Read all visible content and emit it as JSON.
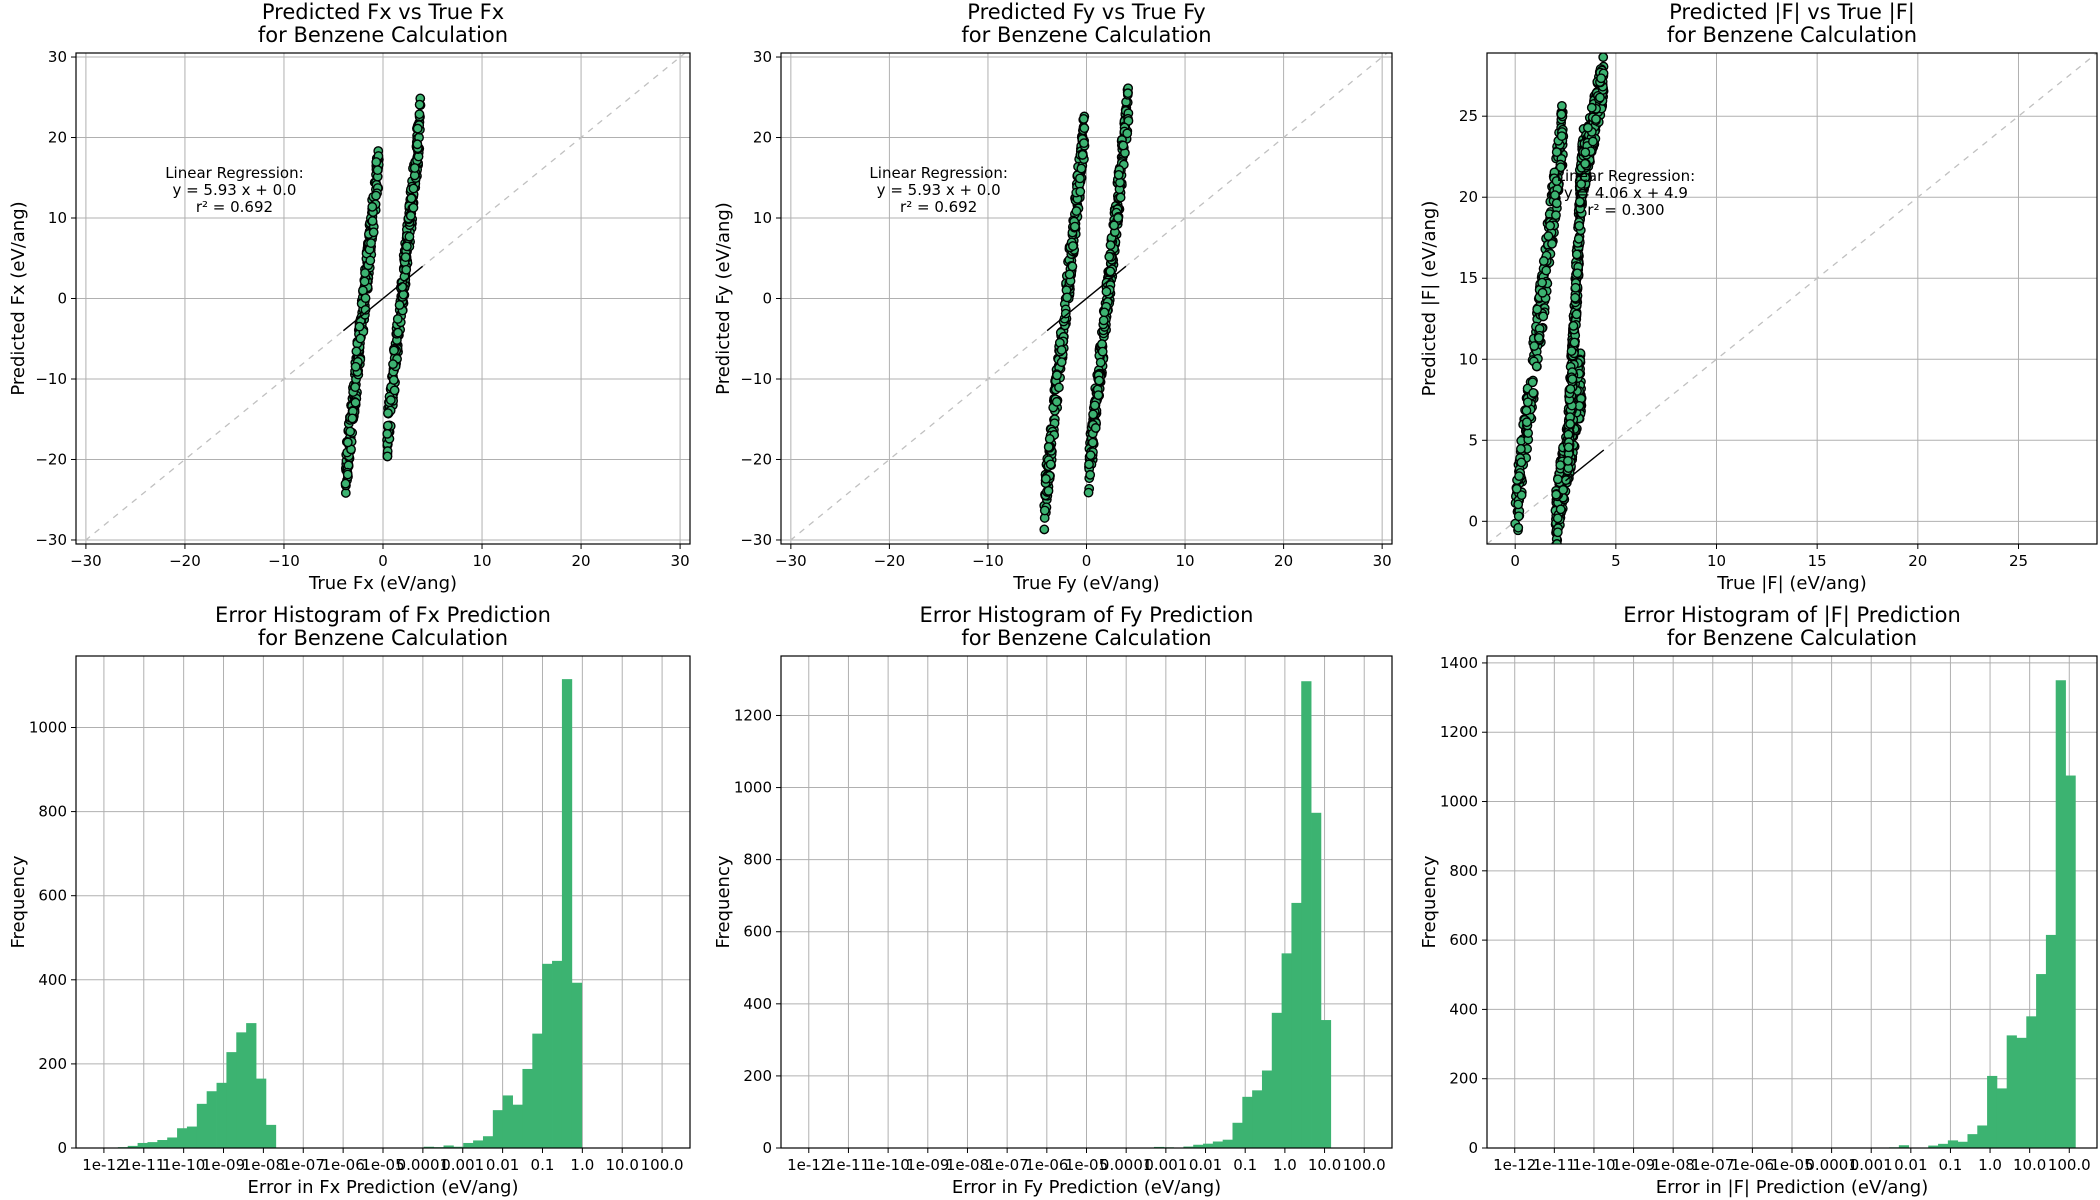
{
  "colors": {
    "marker_fill": "#3cb371",
    "marker_edge": "#000000",
    "bar_fill": "#3cb371",
    "grid": "#b0b0b0",
    "identity_line": "#c0c0c0",
    "regression_line": "#000000"
  },
  "chart_data": [
    {
      "type": "scatter",
      "title": "Predicted Fx vs True Fx\nfor Benzene Calculation",
      "xlabel": "True Fx (eV/ang)",
      "ylabel": "Predicted Fx (eV/ang)",
      "xlim": [
        -31,
        31
      ],
      "ylim": [
        -30.5,
        30.5
      ],
      "xticks": [
        -30,
        -20,
        -10,
        0,
        10,
        20,
        30
      ],
      "xticklabels": [
        "−30",
        "−20",
        "−10",
        "0",
        "10",
        "20",
        "30"
      ],
      "yticks": [
        -30,
        -20,
        -10,
        0,
        10,
        20,
        30
      ],
      "yticklabels": [
        "−30",
        "−20",
        "−10",
        "0",
        "10",
        "20",
        "30"
      ],
      "grid": true,
      "identity_line": true,
      "regression_line": {
        "x": [
          -4,
          4
        ],
        "y": [
          -4,
          4
        ]
      },
      "annotation": [
        "Linear Regression:",
        "y = 5.93 x + 0.0",
        "r² = 0.692"
      ],
      "annotation_anchor": {
        "x": -15,
        "y": 15
      },
      "point_bands": [
        {
          "x": [
            -3.8,
            -0.4
          ],
          "y_center": [
            -22.5,
            17.5
          ],
          "halfwidth": 3
        },
        {
          "x": [
            0.4,
            3.8
          ],
          "y_center": [
            -17.5,
            22.5
          ],
          "halfwidth": 3
        }
      ]
    },
    {
      "type": "scatter",
      "title": "Predicted Fy vs True Fy\nfor Benzene Calculation",
      "xlabel": "True Fy (eV/ang)",
      "ylabel": "Predicted Fy (eV/ang)",
      "xlim": [
        -31,
        31
      ],
      "ylim": [
        -30.5,
        30.5
      ],
      "xticks": [
        -30,
        -20,
        -10,
        0,
        10,
        20,
        30
      ],
      "xticklabels": [
        "−30",
        "−20",
        "−10",
        "0",
        "10",
        "20",
        "30"
      ],
      "yticks": [
        -30,
        -20,
        -10,
        0,
        10,
        20,
        30
      ],
      "yticklabels": [
        "−30",
        "−20",
        "−10",
        "0",
        "10",
        "20",
        "30"
      ],
      "grid": true,
      "identity_line": true,
      "regression_line": {
        "x": [
          -4,
          4
        ],
        "y": [
          -4,
          4
        ]
      },
      "annotation": [
        "Linear Regression:",
        "y = 5.93 x + 0.0",
        "r² = 0.692"
      ],
      "annotation_anchor": {
        "x": -15,
        "y": 15
      },
      "point_bands": [
        {
          "x": [
            -4.3,
            -0.2
          ],
          "y_center": [
            -26,
            21
          ],
          "halfwidth": 3
        },
        {
          "x": [
            0.2,
            4.3
          ],
          "y_center": [
            -22,
            25
          ],
          "halfwidth": 3
        }
      ]
    },
    {
      "type": "scatter",
      "title": "Predicted |F| vs True |F|\nfor Benzene Calculation",
      "xlabel": "True |F| (eV/ang)",
      "ylabel": "Predicted |F| (eV/ang)",
      "xlim": [
        -1.4,
        28.9
      ],
      "ylim": [
        -1.4,
        28.9
      ],
      "xticks": [
        0,
        5,
        10,
        15,
        20,
        25
      ],
      "xticklabels": [
        "0",
        "5",
        "10",
        "15",
        "20",
        "25"
      ],
      "yticks": [
        0,
        5,
        10,
        15,
        20,
        25
      ],
      "yticklabels": [
        "0",
        "5",
        "10",
        "15",
        "20",
        "25"
      ],
      "grid": true,
      "identity_line": true,
      "regression_line": {
        "x": [
          2.5,
          4.4
        ],
        "y": [
          2.5,
          4.4
        ]
      },
      "annotation": [
        "Linear Regression:",
        "y = 4.06 x + 4.9",
        "r² = 0.300"
      ],
      "annotation_anchor": {
        "x": 5.5,
        "y": 21
      },
      "point_bands": [
        {
          "x": [
            0,
            2.4
          ],
          "y_start": [
            0,
            24.5
          ],
          "halfwidth": 2
        },
        {
          "x": [
            2,
            3.3
          ],
          "y_start": [
            0,
            9
          ],
          "halfwidth": 2
        },
        {
          "x": [
            2.6,
            3.4
          ],
          "y_start": [
            4,
            23
          ],
          "halfwidth": 2
        },
        {
          "x": [
            3.2,
            4.4
          ],
          "y_start": [
            20.5,
            27.5
          ],
          "halfwidth": 1.5
        }
      ]
    },
    {
      "type": "bar",
      "title": "Error Histogram of Fx Prediction\nfor Benzene Calculation",
      "xlabel": "Error in Fx Prediction (eV/ang)",
      "ylabel": "Frequency",
      "xscale": "log",
      "xlim": [
        1e-12,
        100
      ],
      "ylim": [
        0,
        1170
      ],
      "xtick_labels": [
        "1e-12",
        "1e-11",
        "1e-10",
        "1e-09",
        "1e-08",
        "1e-07",
        "1e-06",
        "1e-05",
        "0.0001",
        "0.001",
        "0.01",
        "0.1",
        "1.0",
        "10.0",
        "100.0"
      ],
      "yticks": [
        0,
        200,
        400,
        600,
        800,
        1000
      ],
      "grid": true,
      "bins": {
        "log10_start": -11.65,
        "log10_width": 0.2475,
        "counts": [
          2,
          5,
          12,
          14,
          19,
          25,
          47,
          51,
          105,
          135,
          155,
          228,
          275,
          297,
          165,
          55,
          0,
          0,
          0,
          0,
          0,
          0,
          0,
          0,
          0,
          0,
          0,
          0,
          0,
          0,
          0,
          3,
          2,
          6,
          3,
          12,
          18,
          28,
          90,
          125,
          103,
          188,
          272,
          438,
          445,
          1115,
          393
        ]
      }
    },
    {
      "type": "bar",
      "title": "Error Histogram of Fy Prediction\nfor Benzene Calculation",
      "xlabel": "Error in Fy Prediction (eV/ang)",
      "ylabel": "Frequency",
      "xscale": "log",
      "xlim": [
        1e-12,
        100
      ],
      "ylim": [
        0,
        1365
      ],
      "xtick_labels": [
        "1e-12",
        "1e-11",
        "1e-10",
        "1e-09",
        "1e-08",
        "1e-07",
        "1e-06",
        "1e-05",
        "0.0001",
        "0.001",
        "0.01",
        "0.1",
        "1.0",
        "10.0",
        "100.0"
      ],
      "yticks": [
        0,
        200,
        400,
        600,
        800,
        1000,
        1200
      ],
      "grid": true,
      "bins": {
        "log10_start": -3.3,
        "log10_width": 0.2475,
        "counts": [
          3,
          2,
          0,
          4,
          9,
          12,
          18,
          23,
          70,
          142,
          160,
          215,
          375,
          540,
          680,
          1295,
          930,
          355
        ]
      }
    },
    {
      "type": "bar",
      "title": "Error Histogram of |F| Prediction\nfor Benzene Calculation",
      "xlabel": "Error in |F| Prediction (eV/ang)",
      "ylabel": "Frequency",
      "xscale": "log",
      "xlim": [
        1e-12,
        100
      ],
      "ylim": [
        0,
        1420
      ],
      "xtick_labels": [
        "1e-12",
        "1e-11",
        "1e-10",
        "1e-09",
        "1e-08",
        "1e-07",
        "1e-06",
        "1e-05",
        "0.0001",
        "0.001",
        "0.01",
        "0.1",
        "1.0",
        "10.0",
        "100.0"
      ],
      "yticks": [
        0,
        200,
        400,
        600,
        800,
        1000,
        1200,
        1400
      ],
      "grid": true,
      "bins": {
        "log10_start": -2.55,
        "log10_width": 0.2475,
        "counts": [
          2,
          8,
          0,
          0,
          7,
          12,
          22,
          18,
          40,
          65,
          208,
          172,
          325,
          318,
          380,
          502,
          615,
          1350,
          1075
        ]
      }
    }
  ]
}
